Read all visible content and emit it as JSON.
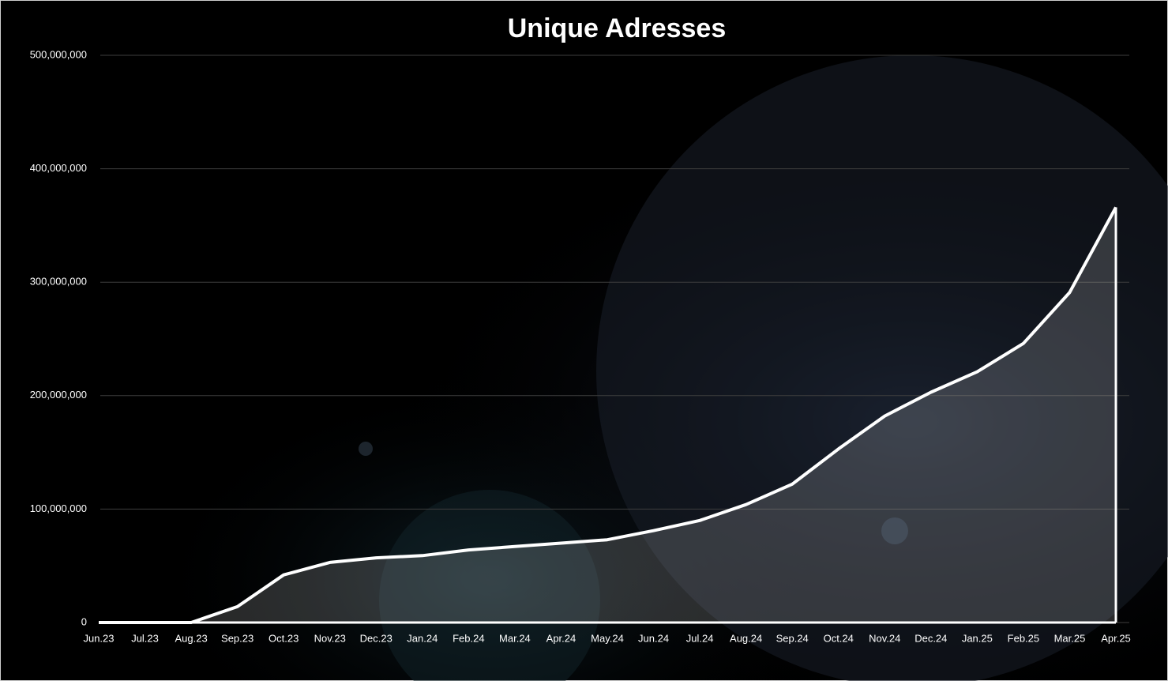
{
  "chart_data": {
    "type": "area",
    "title": "Unique Adresses",
    "categories": [
      "Jun.23",
      "Jul.23",
      "Aug.23",
      "Sep.23",
      "Oct.23",
      "Nov.23",
      "Dec.23",
      "Jan.24",
      "Feb.24",
      "Mar.24",
      "Apr.24",
      "May.24",
      "Jun.24",
      "Jul.24",
      "Aug.24",
      "Sep.24",
      "Oct.24",
      "Nov.24",
      "Dec.24",
      "Jan.25",
      "Feb.25",
      "Mar.25",
      "Apr.25"
    ],
    "values": [
      0,
      0,
      0,
      14000000,
      42000000,
      53000000,
      57000000,
      59000000,
      64000000,
      67000000,
      70000000,
      73000000,
      81000000,
      90000000,
      104000000,
      122000000,
      153000000,
      182000000,
      203000000,
      221000000,
      246000000,
      291000000,
      366000000
    ],
    "color": "#ffffff",
    "fill": "rgba(255,255,255,0.16)",
    "ylim": [
      0,
      500000000
    ],
    "yticks": [
      0,
      {
        "value": 100000000,
        "label": "100,000,000"
      },
      {
        "value": 200000000,
        "label": "200,000,000"
      },
      {
        "value": 300000000,
        "label": "300,000,000"
      },
      {
        "value": 400000000,
        "label": "400,000,000"
      },
      {
        "value": 500000000,
        "label": "500,000,000"
      }
    ],
    "grid": true
  }
}
